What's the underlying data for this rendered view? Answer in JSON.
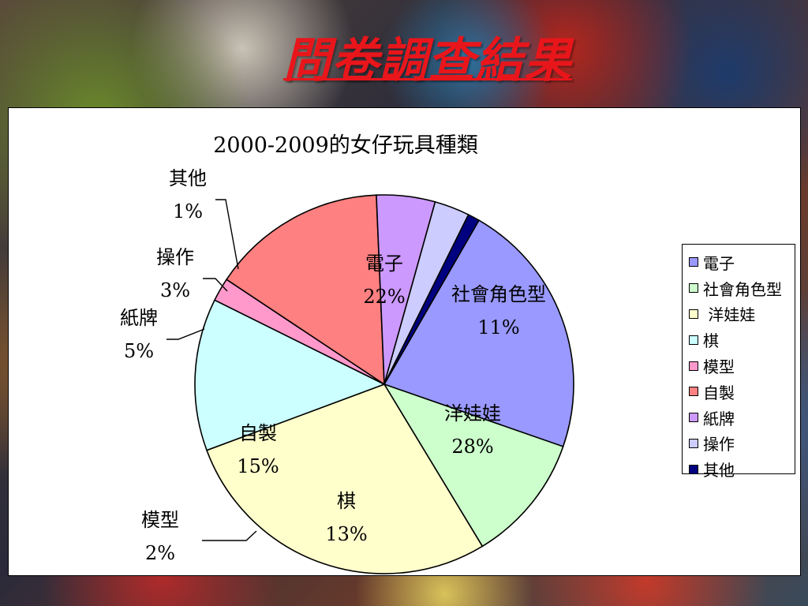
{
  "page": {
    "title": "問卷調查結果"
  },
  "chart_data": {
    "type": "pie",
    "title": "2000-2009的女仔玩具種類",
    "start_angle_deg": 30,
    "direction": "clockwise",
    "legend_position": "right",
    "slices": [
      {
        "label": "電子",
        "legend": "電子",
        "value": 22,
        "display": "22%",
        "color": "#9999ff",
        "label_placement": "inside"
      },
      {
        "label": "社會角色型",
        "legend": "社會角色型",
        "value": 11,
        "display": "11%",
        "color": "#ccffcc",
        "label_placement": "inside"
      },
      {
        "label": "洋娃娃",
        "legend": " 洋娃娃",
        "value": 28,
        "display": "28%",
        "color": "#ffffcc",
        "label_placement": "inside"
      },
      {
        "label": "棋",
        "legend": "棋",
        "value": 13,
        "display": "13%",
        "color": "#ccffff",
        "label_placement": "inside"
      },
      {
        "label": "模型",
        "legend": "模型",
        "value": 2,
        "display": "2%",
        "color": "#ff99cc",
        "label_placement": "outside"
      },
      {
        "label": "自製",
        "legend": "自製",
        "value": 15,
        "display": "15%",
        "color": "#ff8080",
        "label_placement": "inside"
      },
      {
        "label": "紙牌",
        "legend": "紙牌",
        "value": 5,
        "display": "5%",
        "color": "#cc99ff",
        "label_placement": "outside"
      },
      {
        "label": "操作",
        "legend": "操作",
        "value": 3,
        "display": "3%",
        "color": "#ccccff",
        "label_placement": "outside"
      },
      {
        "label": "其他",
        "legend": "其他",
        "value": 1,
        "display": "1%",
        "color": "#000080",
        "label_placement": "outside"
      }
    ]
  }
}
